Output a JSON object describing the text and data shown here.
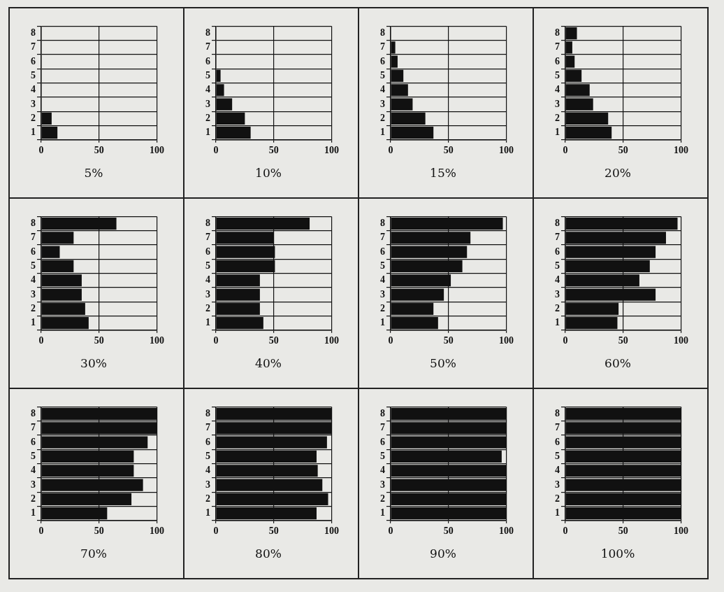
{
  "chart_data": [
    {
      "type": "bar",
      "orientation": "horizontal",
      "title": "5%",
      "categories": [
        "8",
        "7",
        "6",
        "5",
        "4",
        "3",
        "2",
        "1"
      ],
      "values": [
        0,
        0,
        0,
        0,
        0,
        0,
        9,
        14
      ],
      "color": "#111111",
      "xlim": [
        0,
        100
      ],
      "xticks": [
        0,
        50,
        100
      ],
      "grid": true
    },
    {
      "type": "bar",
      "orientation": "horizontal",
      "title": "10%",
      "categories": [
        "8",
        "7",
        "6",
        "5",
        "4",
        "3",
        "2",
        "1"
      ],
      "values": [
        0,
        0,
        0,
        4,
        7,
        14,
        25,
        30
      ],
      "color": "#111111",
      "xlim": [
        0,
        100
      ],
      "xticks": [
        0,
        50,
        100
      ],
      "grid": true
    },
    {
      "type": "bar",
      "orientation": "horizontal",
      "title": "15%",
      "categories": [
        "8",
        "7",
        "6",
        "5",
        "4",
        "3",
        "2",
        "1"
      ],
      "values": [
        0,
        4,
        6,
        11,
        15,
        19,
        30,
        37
      ],
      "color": "#111111",
      "xlim": [
        0,
        100
      ],
      "xticks": [
        0,
        50,
        100
      ],
      "grid": true
    },
    {
      "type": "bar",
      "orientation": "horizontal",
      "title": "20%",
      "categories": [
        "8",
        "7",
        "6",
        "5",
        "4",
        "3",
        "2",
        "1"
      ],
      "values": [
        10,
        6,
        8,
        14,
        21,
        24,
        37,
        40
      ],
      "color": "#111111",
      "xlim": [
        0,
        100
      ],
      "xticks": [
        0,
        50,
        100
      ],
      "grid": true
    },
    {
      "type": "bar",
      "orientation": "horizontal",
      "title": "30%",
      "categories": [
        "8",
        "7",
        "6",
        "5",
        "4",
        "3",
        "2",
        "1"
      ],
      "values": [
        65,
        28,
        16,
        28,
        35,
        35,
        38,
        41
      ],
      "color": "#111111",
      "xlim": [
        0,
        100
      ],
      "xticks": [
        0,
        50,
        100
      ],
      "grid": true
    },
    {
      "type": "bar",
      "orientation": "horizontal",
      "title": "40%",
      "categories": [
        "8",
        "7",
        "6",
        "5",
        "4",
        "3",
        "2",
        "1"
      ],
      "values": [
        81,
        50,
        51,
        51,
        38,
        38,
        38,
        41
      ],
      "color": "#111111",
      "xlim": [
        0,
        100
      ],
      "xticks": [
        0,
        50,
        100
      ],
      "grid": true
    },
    {
      "type": "bar",
      "orientation": "horizontal",
      "title": "50%",
      "categories": [
        "8",
        "7",
        "6",
        "5",
        "4",
        "3",
        "2",
        "1"
      ],
      "values": [
        97,
        69,
        66,
        62,
        52,
        46,
        37,
        41
      ],
      "color": "#111111",
      "xlim": [
        0,
        100
      ],
      "xticks": [
        0,
        50,
        100
      ],
      "grid": true
    },
    {
      "type": "bar",
      "orientation": "horizontal",
      "title": "60%",
      "categories": [
        "8",
        "7",
        "6",
        "5",
        "4",
        "3",
        "2",
        "1"
      ],
      "values": [
        97,
        87,
        78,
        73,
        64,
        78,
        46,
        45
      ],
      "color": "#111111",
      "xlim": [
        0,
        100
      ],
      "xticks": [
        0,
        50,
        100
      ],
      "grid": true
    },
    {
      "type": "bar",
      "orientation": "horizontal",
      "title": "70%",
      "categories": [
        "8",
        "7",
        "6",
        "5",
        "4",
        "3",
        "2",
        "1"
      ],
      "values": [
        100,
        100,
        92,
        80,
        80,
        88,
        78,
        57
      ],
      "color": "#111111",
      "xlim": [
        0,
        100
      ],
      "xticks": [
        0,
        50,
        100
      ],
      "grid": true
    },
    {
      "type": "bar",
      "orientation": "horizontal",
      "title": "80%",
      "categories": [
        "8",
        "7",
        "6",
        "5",
        "4",
        "3",
        "2",
        "1"
      ],
      "values": [
        100,
        100,
        96,
        87,
        88,
        92,
        97,
        87
      ],
      "color": "#111111",
      "xlim": [
        0,
        100
      ],
      "xticks": [
        0,
        50,
        100
      ],
      "grid": true
    },
    {
      "type": "bar",
      "orientation": "horizontal",
      "title": "90%",
      "categories": [
        "8",
        "7",
        "6",
        "5",
        "4",
        "3",
        "2",
        "1"
      ],
      "values": [
        100,
        100,
        100,
        96,
        100,
        100,
        100,
        100
      ],
      "color": "#111111",
      "xlim": [
        0,
        100
      ],
      "xticks": [
        0,
        50,
        100
      ],
      "grid": true
    },
    {
      "type": "bar",
      "orientation": "horizontal",
      "title": "100%",
      "categories": [
        "8",
        "7",
        "6",
        "5",
        "4",
        "3",
        "2",
        "1"
      ],
      "values": [
        100,
        100,
        100,
        100,
        100,
        100,
        100,
        100
      ],
      "color": "#111111",
      "xlim": [
        0,
        100
      ],
      "xticks": [
        0,
        50,
        100
      ],
      "grid": true
    }
  ]
}
